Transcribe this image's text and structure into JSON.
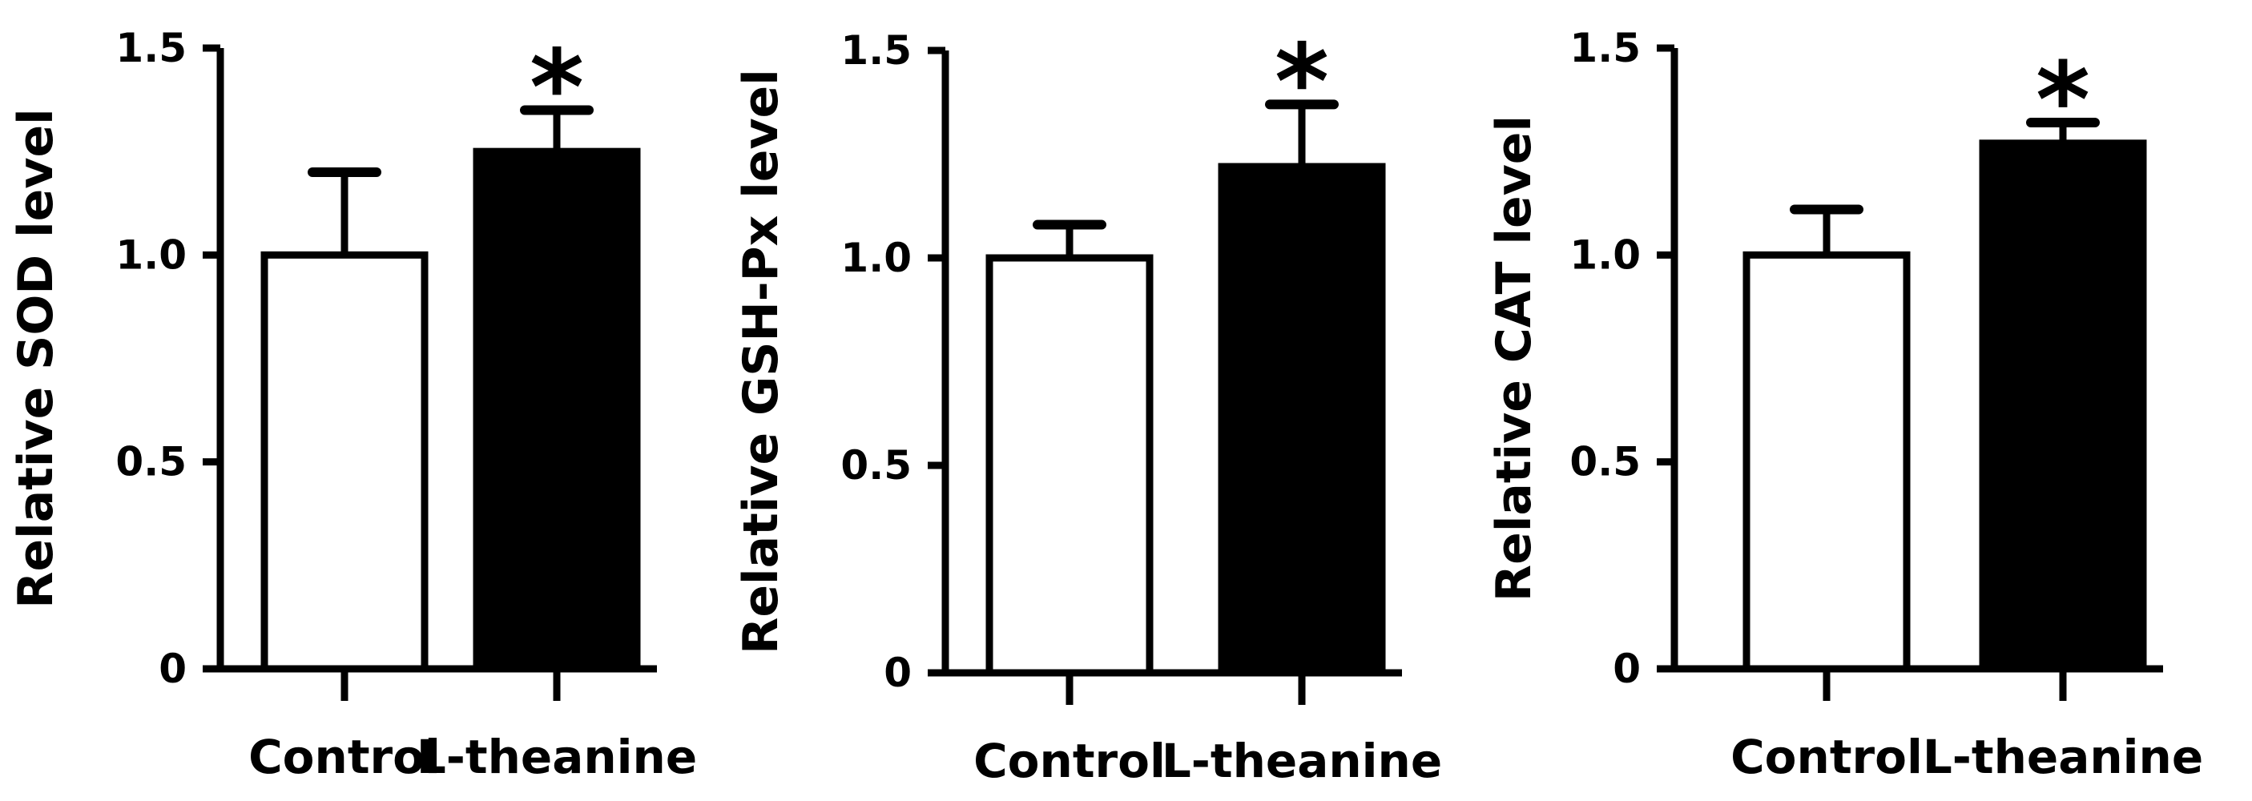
{
  "chart_data": [
    {
      "type": "bar",
      "categories": [
        "Control",
        "L-theanine"
      ],
      "values": [
        1.0,
        1.25
      ],
      "errors": [
        0.2,
        0.1
      ],
      "bar_fill": [
        "#ffffff",
        "#000000"
      ],
      "significance": [
        "",
        "*"
      ],
      "ylabel": "Relative SOD level",
      "ylim": [
        0,
        1.5
      ],
      "yticks": [
        0,
        0.5,
        1.0,
        1.5
      ],
      "ytick_labels": [
        "0",
        "0.5",
        "1.0",
        "1.5"
      ],
      "grid": false
    },
    {
      "type": "bar",
      "categories": [
        "Control",
        "L-theanine"
      ],
      "values": [
        1.0,
        1.22
      ],
      "errors": [
        0.08,
        0.15
      ],
      "bar_fill": [
        "#ffffff",
        "#000000"
      ],
      "significance": [
        "",
        "*"
      ],
      "ylabel": "Relative GSH-Px level",
      "ylim": [
        0,
        1.5
      ],
      "yticks": [
        0,
        0.5,
        1.0,
        1.5
      ],
      "ytick_labels": [
        "0",
        "0.5",
        "1.0",
        "1.5"
      ],
      "grid": false
    },
    {
      "type": "bar",
      "categories": [
        "Control",
        "L-theanine"
      ],
      "values": [
        1.0,
        1.27
      ],
      "errors": [
        0.11,
        0.05
      ],
      "bar_fill": [
        "#ffffff",
        "#000000"
      ],
      "significance": [
        "",
        "*"
      ],
      "ylabel": "Relative CAT level",
      "ylim": [
        0,
        1.5
      ],
      "yticks": [
        0,
        0.5,
        1.0,
        1.5
      ],
      "ytick_labels": [
        "0",
        "0.5",
        "1.0",
        "1.5"
      ],
      "grid": false
    }
  ]
}
